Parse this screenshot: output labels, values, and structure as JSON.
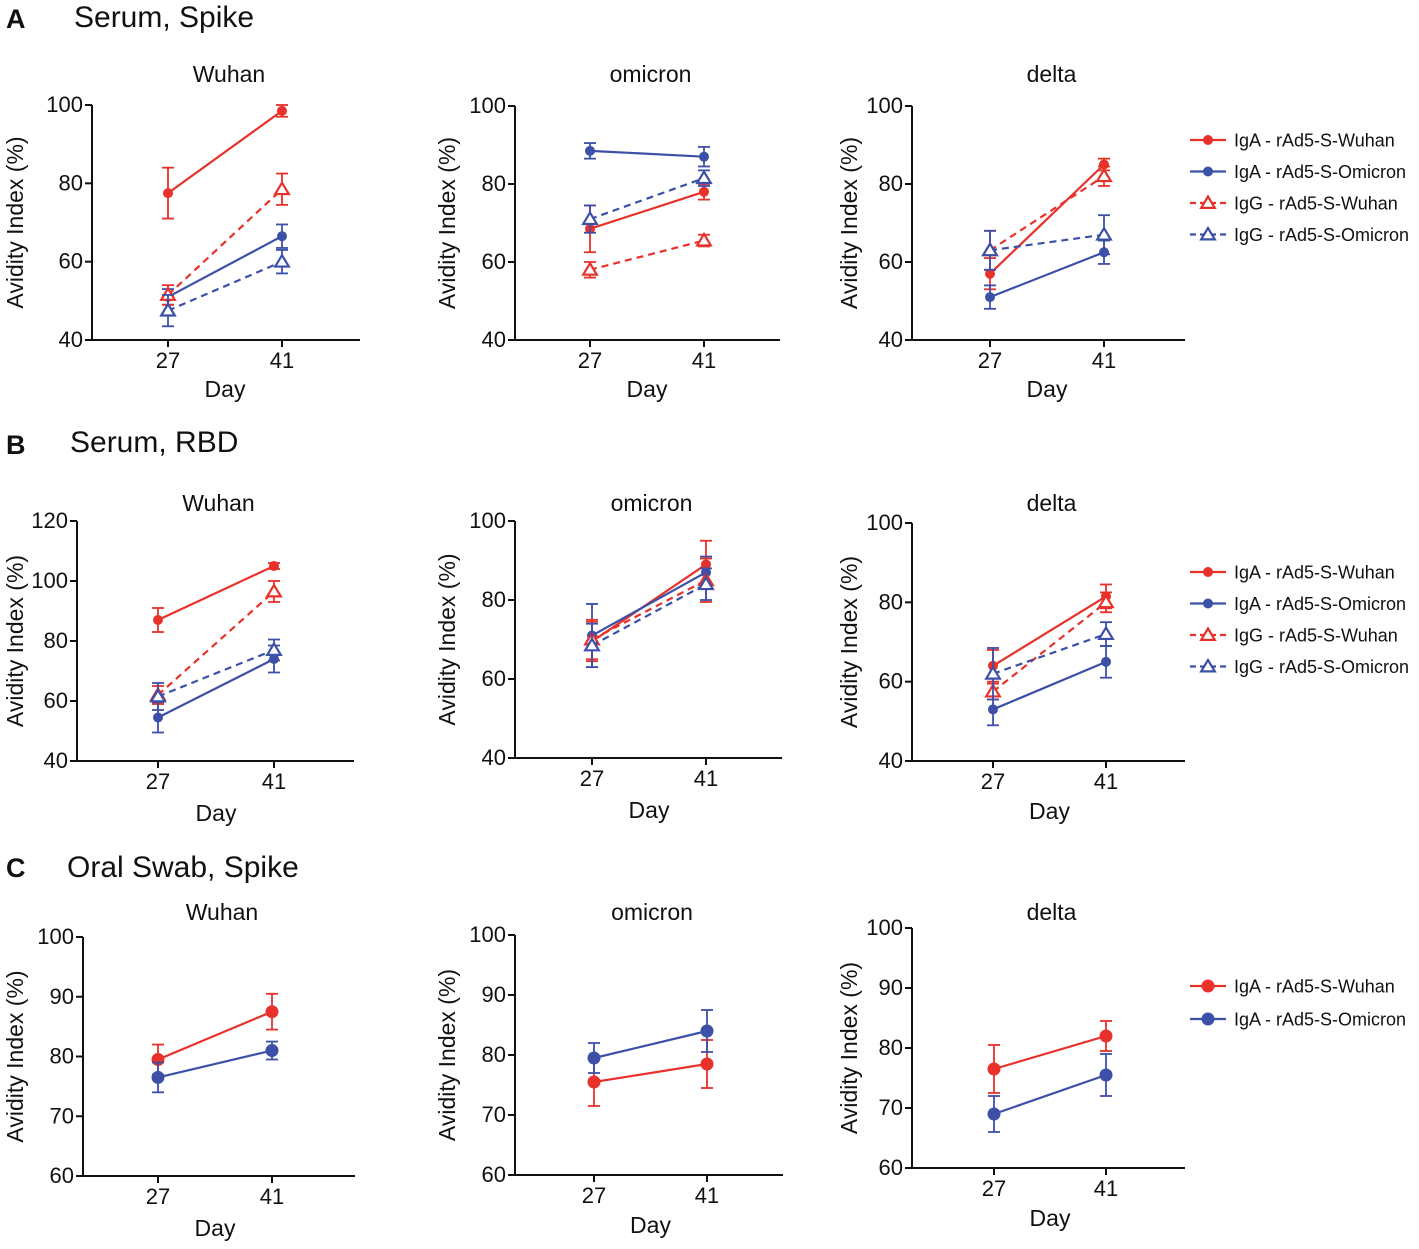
{
  "colors": {
    "red": "#e8312a",
    "blue": "#3c50a8",
    "axis": "#111111"
  },
  "panels": [
    {
      "letter": "A",
      "title": "Serum, Spike"
    },
    {
      "letter": "B",
      "title": "Serum, RBD"
    },
    {
      "letter": "C",
      "title": "Oral Swab, Spike"
    }
  ],
  "legends": [
    [
      "IgA - rAd5-S-Wuhan",
      "IgA - rAd5-S-Omicron",
      "IgG - rAd5-S-Wuhan",
      "IgG - rAd5-S-Omicron"
    ],
    [
      "IgA - rAd5-S-Wuhan",
      "IgA - rAd5-S-Omicron",
      "IgG - rAd5-S-Wuhan",
      "IgG - rAd5-S-Omicron"
    ],
    [
      "IgA - rAd5-S-Wuhan",
      "IgA - rAd5-S-Omicron"
    ]
  ],
  "chart_data": [
    {
      "type": "line",
      "panel": "A",
      "title": "Wuhan",
      "xlabel": "Day",
      "ylabel": "Avidity Index (%)",
      "categories": [
        "27",
        "41"
      ],
      "ylim": [
        40,
        100
      ],
      "yticks": [
        "40",
        "60",
        "80",
        "100"
      ],
      "series": [
        {
          "name": "IgA - rAd5-S-Wuhan",
          "values": [
            77.5,
            98.5
          ],
          "err": [
            6.5,
            1.5
          ]
        },
        {
          "name": "IgA - rAd5-S-Omicron",
          "values": [
            51,
            66.5
          ],
          "err": [
            2,
            3
          ]
        },
        {
          "name": "IgG - rAd5-S-Wuhan",
          "values": [
            51.5,
            78.5
          ],
          "err": [
            2.5,
            4
          ]
        },
        {
          "name": "IgG - rAd5-S-Omicron",
          "values": [
            47.5,
            60
          ],
          "err": [
            4,
            3
          ]
        }
      ]
    },
    {
      "type": "line",
      "panel": "A",
      "title": "omicron",
      "xlabel": "Day",
      "ylabel": "Avidity Index (%)",
      "categories": [
        "27",
        "41"
      ],
      "ylim": [
        40,
        100
      ],
      "yticks": [
        "40",
        "60",
        "80",
        "100"
      ],
      "series": [
        {
          "name": "IgA - rAd5-S-Wuhan",
          "values": [
            68.5,
            78
          ],
          "err": [
            6,
            2
          ]
        },
        {
          "name": "IgA - rAd5-S-Omicron",
          "values": [
            88.5,
            87
          ],
          "err": [
            2,
            2.5
          ]
        },
        {
          "name": "IgG - rAd5-S-Wuhan",
          "values": [
            58,
            65.5
          ],
          "err": [
            2,
            1.5
          ]
        },
        {
          "name": "IgG - rAd5-S-Omicron",
          "values": [
            71,
            81.5
          ],
          "err": [
            3.5,
            2
          ]
        }
      ]
    },
    {
      "type": "line",
      "panel": "A",
      "title": "delta",
      "xlabel": "Day",
      "ylabel": "Avidity Index (%)",
      "categories": [
        "27",
        "41"
      ],
      "ylim": [
        40,
        100
      ],
      "yticks": [
        "40",
        "60",
        "80",
        "100"
      ],
      "series": [
        {
          "name": "IgA - rAd5-S-Wuhan",
          "values": [
            57,
            85
          ],
          "err": [
            4,
            1.5
          ]
        },
        {
          "name": "IgA - rAd5-S-Omicron",
          "values": [
            51,
            62.5
          ],
          "err": [
            3,
            3
          ]
        },
        {
          "name": "IgG - rAd5-S-Wuhan",
          "values": [
            63,
            82
          ],
          "err": [
            5,
            2.5
          ]
        },
        {
          "name": "IgG - rAd5-S-Omicron",
          "values": [
            63,
            67
          ],
          "err": [
            5,
            5
          ]
        }
      ]
    },
    {
      "type": "line",
      "panel": "B",
      "title": "Wuhan",
      "xlabel": "Day",
      "ylabel": "Avidity Index (%)",
      "categories": [
        "27",
        "41"
      ],
      "ylim": [
        40,
        120
      ],
      "yticks": [
        "40",
        "60",
        "80",
        "100",
        "120"
      ],
      "series": [
        {
          "name": "IgA - rAd5-S-Wuhan",
          "values": [
            87,
            105
          ],
          "err": [
            4,
            1
          ]
        },
        {
          "name": "IgA - rAd5-S-Omicron",
          "values": [
            54.5,
            74
          ],
          "err": [
            5,
            4.5
          ]
        },
        {
          "name": "IgG - rAd5-S-Wuhan",
          "values": [
            62,
            96.5
          ],
          "err": [
            3,
            3.5
          ]
        },
        {
          "name": "IgG - rAd5-S-Omicron",
          "values": [
            61.5,
            77
          ],
          "err": [
            4.5,
            3.5
          ]
        }
      ]
    },
    {
      "type": "line",
      "panel": "B",
      "title": "omicron",
      "xlabel": "Day",
      "ylabel": "Avidity Index (%)",
      "categories": [
        "27",
        "41"
      ],
      "ylim": [
        40,
        100
      ],
      "yticks": [
        "40",
        "60",
        "80",
        "100"
      ],
      "series": [
        {
          "name": "IgA - rAd5-S-Wuhan",
          "values": [
            69.5,
            89
          ],
          "err": [
            5,
            6
          ]
        },
        {
          "name": "IgA - rAd5-S-Omicron",
          "values": [
            71,
            87
          ],
          "err": [
            8,
            4
          ]
        },
        {
          "name": "IgG - rAd5-S-Wuhan",
          "values": [
            70,
            85
          ],
          "err": [
            5,
            5.5
          ]
        },
        {
          "name": "IgG - rAd5-S-Omicron",
          "values": [
            68.5,
            84
          ],
          "err": [
            5.5,
            4
          ]
        }
      ]
    },
    {
      "type": "line",
      "panel": "B",
      "title": "delta",
      "xlabel": "Day",
      "ylabel": "Avidity Index (%)",
      "categories": [
        "27",
        "41"
      ],
      "ylim": [
        40,
        100
      ],
      "yticks": [
        "40",
        "60",
        "80",
        "100"
      ],
      "series": [
        {
          "name": "IgA - rAd5-S-Wuhan",
          "values": [
            64,
            81.5
          ],
          "err": [
            4,
            3
          ]
        },
        {
          "name": "IgA - rAd5-S-Omicron",
          "values": [
            53,
            65
          ],
          "err": [
            4,
            4
          ]
        },
        {
          "name": "IgG - rAd5-S-Wuhan",
          "values": [
            57.5,
            80
          ],
          "err": [
            2,
            2.5
          ]
        },
        {
          "name": "IgG - rAd5-S-Omicron",
          "values": [
            62,
            72
          ],
          "err": [
            6.5,
            3
          ]
        }
      ]
    },
    {
      "type": "line",
      "panel": "C",
      "title": "Wuhan",
      "xlabel": "Day",
      "ylabel": "Avidity Index (%)",
      "categories": [
        "27",
        "41"
      ],
      "ylim": [
        60,
        100
      ],
      "yticks": [
        "60",
        "70",
        "80",
        "90",
        "100"
      ],
      "series": [
        {
          "name": "IgA - rAd5-S-Wuhan",
          "values": [
            79.5,
            87.5
          ],
          "err": [
            2.5,
            3
          ]
        },
        {
          "name": "IgA - rAd5-S-Omicron",
          "values": [
            76.5,
            81
          ],
          "err": [
            2.5,
            1.5
          ]
        }
      ]
    },
    {
      "type": "line",
      "panel": "C",
      "title": "omicron",
      "xlabel": "Day",
      "ylabel": "Avidity Index (%)",
      "categories": [
        "27",
        "41"
      ],
      "ylim": [
        60,
        100
      ],
      "yticks": [
        "60",
        "70",
        "80",
        "90",
        "100"
      ],
      "series": [
        {
          "name": "IgA - rAd5-S-Wuhan",
          "values": [
            75.5,
            78.5
          ],
          "err": [
            4,
            4
          ]
        },
        {
          "name": "IgA - rAd5-S-Omicron",
          "values": [
            79.5,
            84
          ],
          "err": [
            2.5,
            3.5
          ]
        }
      ]
    },
    {
      "type": "line",
      "panel": "C",
      "title": "delta",
      "xlabel": "Day",
      "ylabel": "Avidity Index (%)",
      "categories": [
        "27",
        "41"
      ],
      "ylim": [
        60,
        100
      ],
      "yticks": [
        "60",
        "70",
        "80",
        "90",
        "100"
      ],
      "series": [
        {
          "name": "IgA - rAd5-S-Wuhan",
          "values": [
            76.5,
            82
          ],
          "err": [
            4,
            2.5
          ]
        },
        {
          "name": "IgA - rAd5-S-Omicron",
          "values": [
            69,
            75.5
          ],
          "err": [
            3,
            3.5
          ]
        }
      ]
    }
  ]
}
